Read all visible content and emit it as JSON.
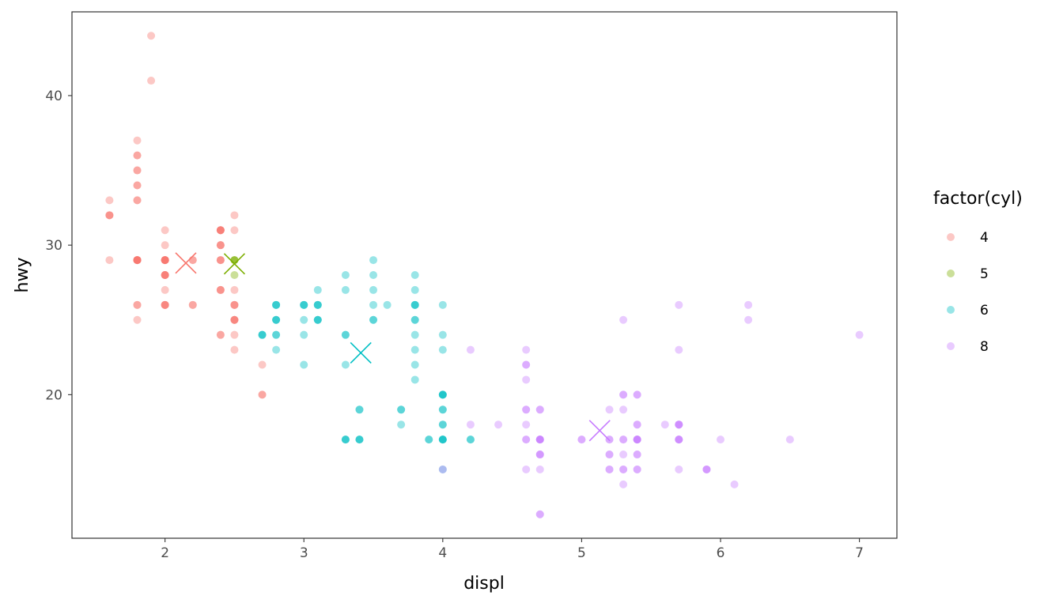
{
  "chart_data": {
    "type": "scatter",
    "title": "",
    "xlabel": "displ",
    "ylabel": "hwy",
    "xlim": [
      1.33,
      7.27
    ],
    "ylim": [
      10.4,
      45.6
    ],
    "x_ticks": [
      2,
      3,
      4,
      5,
      6,
      7
    ],
    "y_ticks": [
      20,
      30,
      40
    ],
    "grid": false,
    "legend": {
      "title": "factor(cyl)",
      "position": "right"
    },
    "point_opacity": 0.4,
    "series": [
      {
        "name": "4",
        "color": "#F8766D",
        "points": [
          [
            1.8,
            29
          ],
          [
            1.8,
            29
          ],
          [
            2.0,
            31
          ],
          [
            2.0,
            30
          ],
          [
            1.8,
            26
          ],
          [
            1.8,
            25
          ],
          [
            2.0,
            28
          ],
          [
            2.0,
            28
          ],
          [
            2.0,
            26
          ],
          [
            2.0,
            29
          ],
          [
            2.4,
            27
          ],
          [
            2.4,
            30
          ],
          [
            2.2,
            26
          ],
          [
            2.2,
            29
          ],
          [
            2.4,
            27
          ],
          [
            2.4,
            29
          ],
          [
            2.2,
            26
          ],
          [
            2.2,
            29
          ],
          [
            2.4,
            24
          ],
          [
            2.4,
            24
          ],
          [
            2.7,
            20
          ],
          [
            2.7,
            20
          ],
          [
            2.7,
            22
          ],
          [
            2.5,
            23
          ],
          [
            2.5,
            24
          ],
          [
            2.5,
            25
          ],
          [
            2.5,
            25
          ],
          [
            2.5,
            27
          ],
          [
            2.5,
            25
          ],
          [
            2.5,
            25
          ],
          [
            1.8,
            29
          ],
          [
            1.8,
            29
          ],
          [
            1.8,
            29
          ],
          [
            2.0,
            29
          ],
          [
            2.4,
            31
          ],
          [
            2.4,
            31
          ],
          [
            2.4,
            30
          ],
          [
            2.4,
            31
          ],
          [
            2.5,
            32
          ],
          [
            2.5,
            26
          ],
          [
            2.5,
            31
          ],
          [
            1.6,
            29
          ],
          [
            1.6,
            32
          ],
          [
            1.6,
            32
          ],
          [
            1.6,
            33
          ],
          [
            1.6,
            32
          ],
          [
            1.8,
            35
          ],
          [
            1.8,
            36
          ],
          [
            1.8,
            36
          ],
          [
            1.8,
            37
          ],
          [
            1.8,
            35
          ],
          [
            1.9,
            44
          ],
          [
            1.9,
            41
          ],
          [
            2.0,
            26
          ],
          [
            2.0,
            29
          ],
          [
            1.8,
            33
          ],
          [
            1.8,
            34
          ],
          [
            1.8,
            34
          ],
          [
            2.0,
            28
          ],
          [
            2.0,
            26
          ],
          [
            2.0,
            27
          ],
          [
            2.0,
            29
          ],
          [
            2.0,
            29
          ],
          [
            1.8,
            29
          ],
          [
            1.8,
            29
          ],
          [
            1.8,
            26
          ],
          [
            2.0,
            26
          ],
          [
            2.0,
            28
          ],
          [
            2.0,
            28
          ],
          [
            2.4,
            31
          ],
          [
            2.4,
            30
          ],
          [
            2.4,
            29
          ],
          [
            2.4,
            29
          ],
          [
            2.4,
            31
          ],
          [
            2.4,
            27
          ],
          [
            2.5,
            26
          ],
          [
            2.5,
            26
          ],
          [
            2.0,
            29
          ],
          [
            2.0,
            29
          ],
          [
            1.8,
            33
          ]
        ],
        "mean": [
          2.15,
          28.8
        ]
      },
      {
        "name": "5",
        "color": "#7CAE00",
        "points": [
          [
            2.5,
            29
          ],
          [
            2.5,
            29
          ],
          [
            2.5,
            28
          ],
          [
            2.5,
            29
          ]
        ],
        "mean": [
          2.5,
          28.75
        ]
      },
      {
        "name": "6",
        "color": "#00BFC4",
        "points": [
          [
            2.8,
            26
          ],
          [
            2.8,
            26
          ],
          [
            3.1,
            27
          ],
          [
            2.8,
            25
          ],
          [
            2.8,
            25
          ],
          [
            3.1,
            25
          ],
          [
            3.1,
            25
          ],
          [
            2.8,
            24
          ],
          [
            3.1,
            25
          ],
          [
            3.1,
            26
          ],
          [
            3.3,
            17
          ],
          [
            3.3,
            17
          ],
          [
            3.3,
            24
          ],
          [
            3.3,
            24
          ],
          [
            3.3,
            22
          ],
          [
            3.8,
            24
          ],
          [
            3.8,
            25
          ],
          [
            3.8,
            26
          ],
          [
            3.8,
            22
          ],
          [
            3.8,
            21
          ],
          [
            3.7,
            18
          ],
          [
            3.7,
            19
          ],
          [
            3.7,
            19
          ],
          [
            3.9,
            17
          ],
          [
            3.9,
            17
          ],
          [
            4.0,
            19
          ],
          [
            4.0,
            20
          ],
          [
            4.0,
            20
          ],
          [
            4.0,
            19
          ],
          [
            4.0,
            17
          ],
          [
            4.0,
            17
          ],
          [
            4.0,
            17
          ],
          [
            4.2,
            17
          ],
          [
            4.0,
            26
          ],
          [
            4.0,
            24
          ],
          [
            4.0,
            23
          ],
          [
            3.4,
            17
          ],
          [
            3.4,
            17
          ],
          [
            3.4,
            19
          ],
          [
            3.5,
            25
          ],
          [
            3.5,
            26
          ],
          [
            3.5,
            27
          ],
          [
            3.5,
            29
          ],
          [
            3.6,
            26
          ],
          [
            3.0,
            26
          ],
          [
            3.0,
            26
          ],
          [
            3.0,
            26
          ],
          [
            3.0,
            25
          ],
          [
            3.0,
            24
          ],
          [
            3.0,
            22
          ],
          [
            3.1,
            26
          ],
          [
            3.3,
            28
          ],
          [
            3.3,
            27
          ],
          [
            3.5,
            28
          ],
          [
            3.8,
            28
          ],
          [
            3.8,
            27
          ],
          [
            3.8,
            26
          ],
          [
            3.8,
            23
          ],
          [
            2.7,
            24
          ],
          [
            2.7,
            24
          ],
          [
            2.8,
            23
          ],
          [
            2.8,
            24
          ],
          [
            3.5,
            25
          ],
          [
            4.0,
            18
          ],
          [
            4.0,
            15
          ],
          [
            4.0,
            20
          ],
          [
            4.0,
            20
          ],
          [
            2.7,
            24
          ],
          [
            2.8,
            25
          ],
          [
            2.8,
            26
          ],
          [
            3.1,
            26
          ],
          [
            3.3,
            17
          ],
          [
            3.4,
            17
          ],
          [
            3.4,
            19
          ],
          [
            3.8,
            26
          ],
          [
            3.8,
            25
          ],
          [
            4.0,
            18
          ],
          [
            4.0,
            17
          ],
          [
            4.2,
            17
          ]
        ],
        "mean": [
          3.41,
          22.8
        ]
      },
      {
        "name": "8",
        "color": "#C77CFF",
        "points": [
          [
            5.7,
            26
          ],
          [
            5.7,
            23
          ],
          [
            6.2,
            26
          ],
          [
            6.2,
            25
          ],
          [
            7.0,
            24
          ],
          [
            5.3,
            17
          ],
          [
            5.3,
            19
          ],
          [
            5.7,
            17
          ],
          [
            6.5,
            17
          ],
          [
            5.2,
            19
          ],
          [
            5.9,
            15
          ],
          [
            4.7,
            17
          ],
          [
            4.7,
            17
          ],
          [
            4.7,
            19
          ],
          [
            5.2,
            17
          ],
          [
            5.2,
            17
          ],
          [
            5.7,
            15
          ],
          [
            5.9,
            15
          ],
          [
            4.7,
            12
          ],
          [
            4.7,
            12
          ],
          [
            4.7,
            16
          ],
          [
            4.7,
            16
          ],
          [
            4.7,
            17
          ],
          [
            4.7,
            15
          ],
          [
            5.4,
            17
          ],
          [
            5.4,
            17
          ],
          [
            5.4,
            18
          ],
          [
            5.4,
            20
          ],
          [
            5.4,
            16
          ],
          [
            5.4,
            15
          ],
          [
            4.6,
            17
          ],
          [
            4.6,
            18
          ],
          [
            4.6,
            17
          ],
          [
            4.6,
            22
          ],
          [
            4.6,
            22
          ],
          [
            5.4,
            17
          ],
          [
            5.4,
            18
          ],
          [
            5.4,
            17
          ],
          [
            4.2,
            23
          ],
          [
            4.2,
            18
          ],
          [
            4.4,
            18
          ],
          [
            4.6,
            21
          ],
          [
            4.6,
            23
          ],
          [
            4.6,
            19
          ],
          [
            4.6,
            19
          ],
          [
            5.3,
            16
          ],
          [
            5.3,
            15
          ],
          [
            5.3,
            14
          ],
          [
            5.4,
            15
          ],
          [
            5.4,
            17
          ],
          [
            5.4,
            16
          ],
          [
            5.6,
            18
          ],
          [
            5.7,
            18
          ],
          [
            5.7,
            18
          ],
          [
            6.1,
            14
          ],
          [
            4.7,
            19
          ],
          [
            4.7,
            17
          ],
          [
            4.7,
            17
          ],
          [
            4.7,
            16
          ],
          [
            5.7,
            17
          ],
          [
            6.0,
            17
          ],
          [
            4.0,
            15
          ],
          [
            4.6,
            15
          ],
          [
            5.0,
            17
          ],
          [
            5.3,
            17
          ],
          [
            5.2,
            15
          ],
          [
            5.2,
            16
          ],
          [
            5.2,
            15
          ],
          [
            5.3,
            20
          ],
          [
            5.3,
            20
          ],
          [
            5.4,
            20
          ],
          [
            5.3,
            15
          ],
          [
            5.3,
            25
          ],
          [
            5.7,
            18
          ],
          [
            5.7,
            18
          ],
          [
            5.7,
            17
          ],
          [
            5.7,
            17
          ],
          [
            5.9,
            15
          ],
          [
            5.0,
            17
          ],
          [
            5.2,
            16
          ]
        ],
        "mean": [
          5.13,
          17.6
        ]
      }
    ]
  }
}
